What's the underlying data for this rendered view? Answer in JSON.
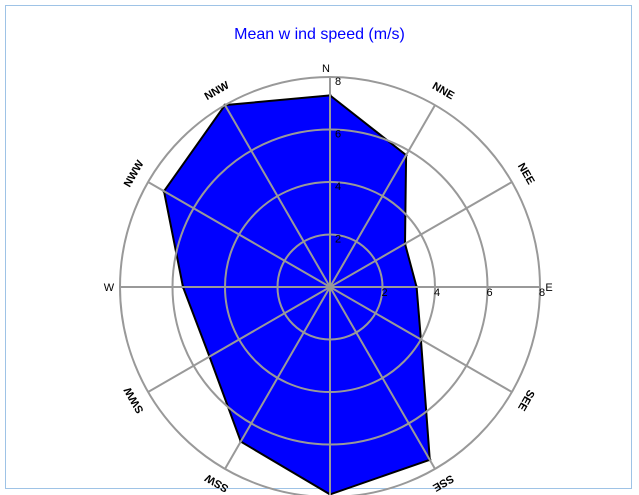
{
  "chart_data": {
    "type": "radar",
    "title": "Mean w ind speed (m/s)",
    "directions": [
      "N",
      "NNE",
      "NEE",
      "E",
      "SEE",
      "SSE",
      "S",
      "SSW",
      "SWW",
      "W",
      "NWW",
      "NNW"
    ],
    "direction_styles": [
      "plain",
      "rotated",
      "rotated",
      "plain",
      "rotated",
      "rotated",
      "plain",
      "rotated",
      "rotated",
      "plain",
      "rotated",
      "rotated"
    ],
    "values": [
      7.3,
      5.8,
      3.3,
      3.3,
      4.0,
      7.6,
      7.9,
      6.8,
      5.3,
      5.6,
      7.3,
      8.0
    ],
    "radial_ticks": [
      2,
      4,
      6,
      8
    ],
    "rlim": [
      0,
      8
    ],
    "grid": true,
    "fill_color": "#0000ff",
    "outline_color": "#000000",
    "grid_color": "#999999",
    "title_color": "#0000ff"
  }
}
